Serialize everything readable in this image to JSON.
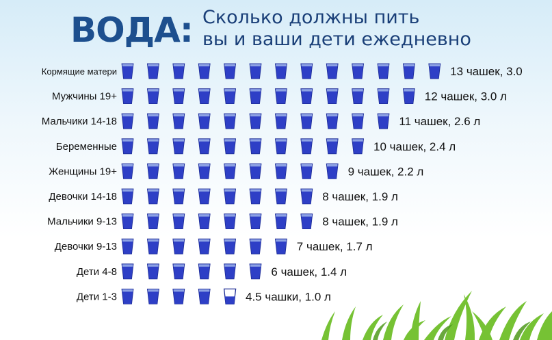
{
  "header": {
    "title": "ВОДА:",
    "subtitle_line1": "Сколько должны пить",
    "subtitle_line2": "вы и ваши дети ежедневно"
  },
  "colors": {
    "cup_fill": "#2e3fc6",
    "cup_rim": "#8da2e4",
    "cup_outline": "#1b2a94",
    "title": "#1d4f8e"
  },
  "icons": [
    "cup-icon",
    "grass-decoration"
  ],
  "chart_data": {
    "type": "bar",
    "categories": [
      "Кормящие матери",
      "Мужчины 19+",
      "Мальчики 14-18",
      "Беременные",
      "Женщины 19+",
      "Девочки 14-18",
      "Мальчики 9-13",
      "Девочки 9-13",
      "Дети 4-8",
      "Дети 1-3"
    ],
    "values": [
      13,
      12,
      11,
      10,
      9,
      8,
      8,
      7,
      6,
      4.5
    ],
    "liters": [
      3.0,
      3.0,
      2.6,
      2.4,
      2.2,
      1.9,
      1.9,
      1.7,
      1.4,
      1.0
    ],
    "value_labels": [
      "13 чашек, 3.0",
      "12 чашек, 3.0 л",
      "11 чашек, 2.6 л",
      "10 чашек, 2.4 л",
      "9 чашек, 2.2 л",
      "8 чашек, 1.9 л",
      "8 чашек, 1.9 л",
      "7 чашек, 1.7 л",
      "6 чашек, 1.4 л",
      "4.5 чашки, 1.0 л"
    ],
    "unit": "чашек",
    "title": "",
    "xlabel": "",
    "ylabel": ""
  }
}
